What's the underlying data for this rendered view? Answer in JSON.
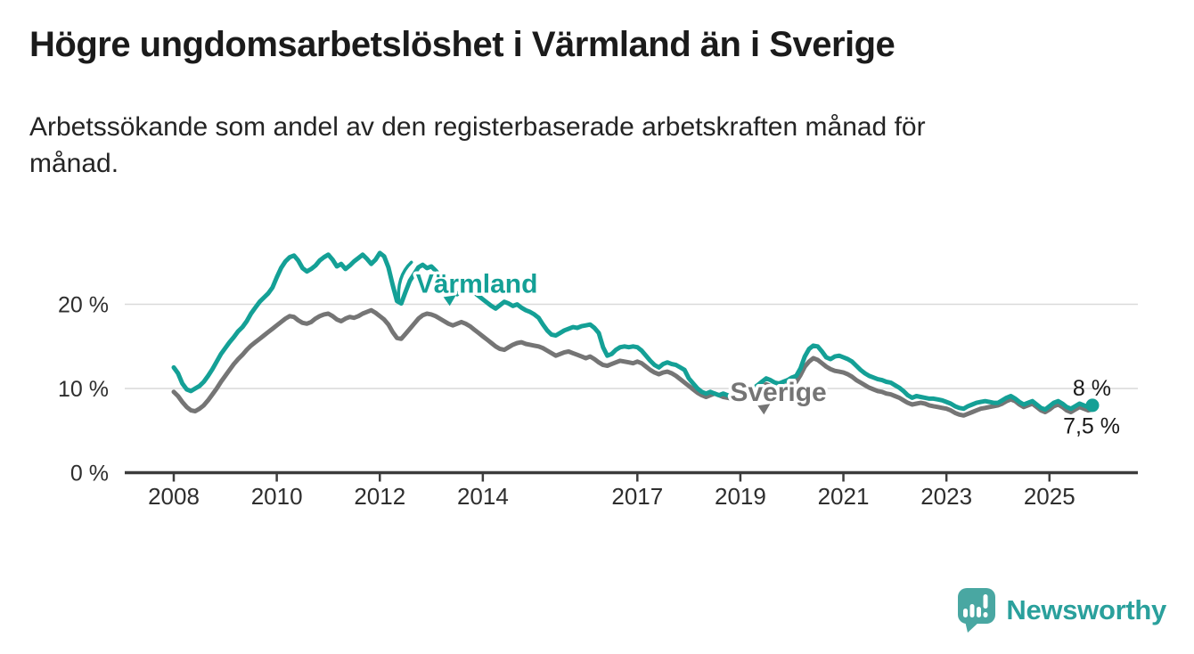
{
  "title": "Högre ungdomsarbetslöshet i Värmland än i Sverige",
  "subtitle_lines": [
    "Arbetssökande som andel av den registerbaserade arbetskraften månad för",
    "månad."
  ],
  "footer": {
    "brand": "Newsworthy"
  },
  "colors": {
    "varmland": "#14a096",
    "sverige": "#757575",
    "axis": "#3c3c3c",
    "grid": "#d9d9d9",
    "text": "#1b1b1b",
    "logo_bubble": "#49a7a2",
    "logo_text": "#2aa09c"
  },
  "chart_data": {
    "type": "line",
    "title": "Högre ungdomsarbetslöshet i Värmland än i Sverige",
    "subtitle": "Arbetssökande som andel av den registerbaserade arbetskraften månad för månad.",
    "unit": "%",
    "frequency": "monthly",
    "x_range": [
      "2008-01",
      "2025-11"
    ],
    "ylim": [
      0,
      27
    ],
    "grid": "horizontal",
    "legend_position": "inline-labels",
    "y_axis": {
      "ticks": [
        {
          "value": 0,
          "label": "0 %"
        },
        {
          "value": 10,
          "label": "10 %"
        },
        {
          "value": 20,
          "label": "20 %"
        }
      ]
    },
    "x_axis": {
      "ticks": [
        2008,
        2010,
        2012,
        2014,
        2017,
        2019,
        2021,
        2023,
        2025
      ]
    },
    "annotations": [
      {
        "text": "Värmland",
        "year": 2012.7,
        "value": 21.4,
        "swash": true,
        "series": "Värmland"
      },
      {
        "text": "Sverige",
        "year": 2018.8,
        "value": 8.5,
        "swash": false,
        "series": "Sverige"
      }
    ],
    "series": [
      {
        "name": "Värmland",
        "color": "#14a096",
        "end_label": "8 %",
        "end_value": 8.0,
        "end_dot": true,
        "values": [
          12.5,
          11.8,
          10.6,
          9.9,
          9.7,
          10.0,
          10.3,
          10.8,
          11.5,
          12.3,
          13.2,
          14.1,
          14.8,
          15.5,
          16.1,
          16.8,
          17.3,
          18.0,
          18.9,
          19.6,
          20.3,
          20.8,
          21.3,
          22.0,
          23.2,
          24.3,
          25.1,
          25.6,
          25.8,
          25.2,
          24.3,
          23.9,
          24.2,
          24.6,
          25.2,
          25.6,
          25.9,
          25.3,
          24.5,
          24.8,
          24.2,
          24.6,
          25.1,
          25.5,
          25.9,
          25.4,
          24.8,
          25.3,
          26.1,
          25.7,
          24.4,
          22.3,
          20.4,
          20.1,
          21.5,
          22.8,
          23.6,
          24.4,
          24.7,
          24.3,
          24.5,
          24.0,
          23.4,
          22.8,
          22.2,
          21.6,
          21.2,
          21.6,
          22.0,
          21.8,
          21.4,
          21.0,
          20.6,
          20.2,
          19.8,
          19.5,
          19.9,
          20.3,
          20.1,
          19.8,
          20.0,
          19.6,
          19.3,
          19.1,
          18.8,
          18.4,
          17.6,
          16.9,
          16.4,
          16.3,
          16.6,
          16.9,
          17.1,
          17.3,
          17.2,
          17.4,
          17.5,
          17.6,
          17.2,
          16.6,
          14.9,
          13.9,
          14.1,
          14.6,
          14.9,
          15.0,
          14.9,
          15.0,
          14.9,
          14.5,
          13.9,
          13.3,
          12.8,
          12.5,
          12.9,
          13.1,
          12.9,
          12.8,
          12.5,
          12.2,
          11.2,
          10.6,
          10.0,
          9.6,
          9.4,
          9.6,
          9.4,
          9.2,
          9.4,
          9.2,
          9.0,
          9.1,
          9.2,
          9.4,
          9.7,
          10.0,
          10.4,
          10.8,
          11.2,
          11.0,
          10.7,
          10.6,
          10.8,
          11.0,
          11.3,
          11.5,
          12.4,
          13.8,
          14.7,
          15.1,
          15.0,
          14.4,
          13.7,
          13.5,
          13.8,
          13.9,
          13.7,
          13.5,
          13.2,
          12.7,
          12.2,
          11.8,
          11.5,
          11.3,
          11.1,
          11.0,
          10.8,
          10.7,
          10.4,
          10.1,
          9.7,
          9.2,
          8.9,
          9.1,
          9.0,
          8.9,
          8.8,
          8.8,
          8.7,
          8.6,
          8.4,
          8.2,
          7.9,
          7.7,
          7.6,
          7.9,
          8.1,
          8.3,
          8.4,
          8.5,
          8.4,
          8.3,
          8.3,
          8.6,
          8.9,
          9.1,
          8.8,
          8.4,
          8.1,
          8.3,
          8.5,
          8.1,
          7.7,
          7.5,
          7.9,
          8.3,
          8.5,
          8.2,
          7.8,
          7.6,
          7.9,
          8.2,
          8.0,
          7.8,
          8.0
        ]
      },
      {
        "name": "Sverige",
        "color": "#757575",
        "end_label": "7,5 %",
        "end_value": 7.5,
        "end_dot": false,
        "values": [
          9.6,
          9.1,
          8.4,
          7.8,
          7.4,
          7.3,
          7.6,
          8.0,
          8.6,
          9.3,
          10.0,
          10.8,
          11.5,
          12.2,
          12.9,
          13.5,
          14.0,
          14.6,
          15.1,
          15.5,
          15.9,
          16.3,
          16.7,
          17.1,
          17.5,
          17.9,
          18.3,
          18.6,
          18.5,
          18.1,
          17.8,
          17.7,
          17.9,
          18.3,
          18.6,
          18.8,
          18.9,
          18.6,
          18.2,
          18.0,
          18.3,
          18.5,
          18.4,
          18.6,
          18.9,
          19.1,
          19.3,
          19.0,
          18.6,
          18.2,
          17.6,
          16.7,
          16.0,
          15.9,
          16.5,
          17.1,
          17.7,
          18.3,
          18.7,
          18.9,
          18.8,
          18.6,
          18.3,
          18.0,
          17.7,
          17.5,
          17.7,
          17.9,
          17.7,
          17.4,
          17.0,
          16.6,
          16.2,
          15.8,
          15.4,
          15.0,
          14.7,
          14.6,
          14.9,
          15.2,
          15.4,
          15.5,
          15.3,
          15.2,
          15.1,
          15.0,
          14.8,
          14.5,
          14.2,
          13.9,
          14.1,
          14.3,
          14.4,
          14.2,
          14.0,
          13.8,
          13.6,
          13.8,
          13.5,
          13.1,
          12.8,
          12.7,
          12.9,
          13.1,
          13.3,
          13.2,
          13.1,
          13.0,
          13.2,
          13.0,
          12.6,
          12.2,
          11.9,
          11.7,
          11.9,
          12.0,
          11.8,
          11.5,
          11.1,
          10.7,
          10.3,
          9.9,
          9.5,
          9.2,
          9.0,
          9.2,
          9.4,
          9.2,
          9.0,
          8.9,
          8.8,
          8.7,
          8.8,
          9.0,
          9.3,
          9.6,
          9.9,
          10.2,
          10.5,
          10.3,
          10.1,
          10.0,
          10.2,
          10.4,
          10.6,
          10.8,
          11.6,
          12.6,
          13.2,
          13.6,
          13.4,
          13.0,
          12.6,
          12.3,
          12.1,
          12.0,
          11.9,
          11.7,
          11.4,
          11.0,
          10.7,
          10.4,
          10.1,
          9.9,
          9.7,
          9.6,
          9.4,
          9.3,
          9.1,
          8.9,
          8.6,
          8.3,
          8.1,
          8.2,
          8.3,
          8.2,
          8.0,
          7.9,
          7.8,
          7.7,
          7.6,
          7.4,
          7.1,
          6.9,
          6.8,
          7.0,
          7.2,
          7.4,
          7.6,
          7.7,
          7.8,
          7.9,
          8.0,
          8.2,
          8.5,
          8.7,
          8.5,
          8.1,
          7.8,
          8.0,
          8.2,
          7.8,
          7.4,
          7.2,
          7.5,
          7.9,
          8.1,
          7.8,
          7.4,
          7.2,
          7.5,
          7.8,
          7.6,
          7.4,
          7.5
        ]
      }
    ]
  }
}
